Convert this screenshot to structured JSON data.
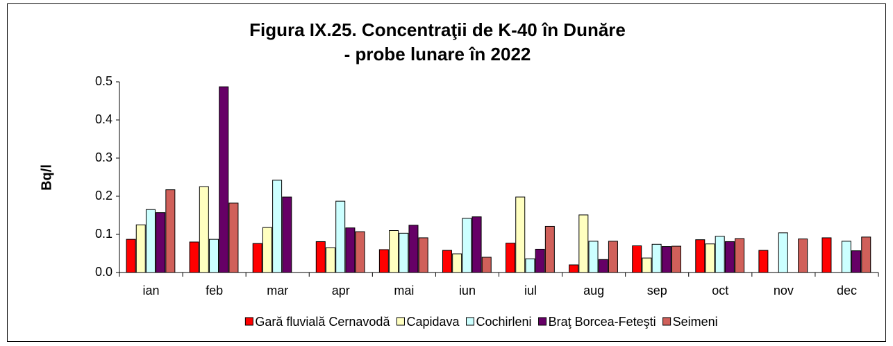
{
  "chart_data": {
    "type": "bar",
    "title": [
      "Figura IX.25. Concentraţii de K-40 în Dunăre",
      "- probe lunare în 2022"
    ],
    "y_label": "Bq/l",
    "categories": [
      "ian",
      "feb",
      "mar",
      "apr",
      "mai",
      "iun",
      "iul",
      "aug",
      "sep",
      "oct",
      "nov",
      "dec"
    ],
    "series": [
      {
        "name": "Gară fluvială Cernavodă",
        "color": "#ff0000",
        "values": [
          0.087,
          0.08,
          0.076,
          0.081,
          0.06,
          0.058,
          0.077,
          0.02,
          0.07,
          0.086,
          0.058,
          0.091
        ]
      },
      {
        "name": "Capidava",
        "color": "#ffffc0",
        "values": [
          0.125,
          0.225,
          0.118,
          0.065,
          0.11,
          0.049,
          0.198,
          0.151,
          0.038,
          0.075,
          null,
          null
        ]
      },
      {
        "name": "Cochirleni",
        "color": "#ccffff",
        "values": [
          0.165,
          0.087,
          0.242,
          0.187,
          0.103,
          0.142,
          0.036,
          0.082,
          0.074,
          0.095,
          0.104,
          0.082
        ]
      },
      {
        "name": "Braţ Borcea-Feteşti",
        "color": "#660066",
        "values": [
          0.157,
          0.487,
          0.198,
          0.117,
          0.124,
          0.146,
          0.061,
          0.034,
          0.068,
          0.081,
          null,
          0.057
        ]
      },
      {
        "name": "Seimeni",
        "color": "#d0605a",
        "values": [
          0.217,
          0.182,
          null,
          0.107,
          0.091,
          0.04,
          0.121,
          0.082,
          0.069,
          0.089,
          0.088,
          0.093
        ]
      }
    ],
    "ylim": [
      0,
      0.5
    ],
    "yticks": [
      {
        "value": 0,
        "label": "0.0"
      },
      0.1,
      0.2,
      0.3,
      0.4,
      0.5
    ],
    "grid": false,
    "legend": "bottom"
  }
}
